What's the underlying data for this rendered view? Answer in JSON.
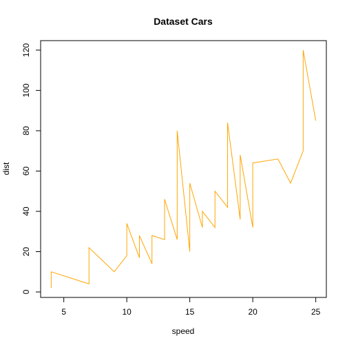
{
  "chart_data": {
    "type": "line",
    "title": "Dataset Cars",
    "xlabel": "speed",
    "ylabel": "dist",
    "xlim": [
      3.16,
      25.84
    ],
    "ylim": [
      -2.72,
      124.72
    ],
    "xticks": [
      5,
      10,
      15,
      20,
      25
    ],
    "yticks": [
      0,
      20,
      40,
      60,
      80,
      100,
      120
    ],
    "grid": false,
    "series": [
      {
        "color": "#FFA500",
        "x": [
          4,
          4,
          7,
          7,
          8,
          9,
          10,
          10,
          10,
          11,
          11,
          12,
          12,
          12,
          12,
          13,
          13,
          13,
          13,
          14,
          14,
          14,
          14,
          15,
          15,
          15,
          16,
          16,
          17,
          17,
          17,
          18,
          18,
          18,
          18,
          19,
          19,
          19,
          20,
          20,
          20,
          20,
          20,
          22,
          23,
          24,
          24,
          24,
          24,
          25
        ],
        "y": [
          2,
          10,
          4,
          22,
          16,
          10,
          18,
          26,
          34,
          17,
          28,
          14,
          20,
          24,
          28,
          26,
          34,
          34,
          46,
          26,
          36,
          60,
          80,
          20,
          26,
          54,
          32,
          40,
          32,
          40,
          50,
          42,
          56,
          76,
          84,
          36,
          46,
          68,
          32,
          48,
          52,
          56,
          64,
          66,
          54,
          70,
          92,
          93,
          120,
          85
        ]
      }
    ]
  }
}
